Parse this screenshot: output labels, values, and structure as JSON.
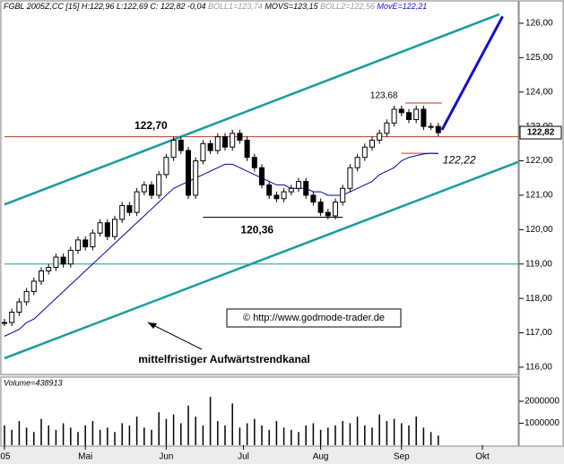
{
  "chart_data": {
    "type": "candlestick",
    "header": [
      "FGBL 2005Z,CC [15] H:122,96 L:122,69 C: 122,82 -0,04",
      "BOLL1=123,74",
      "MOVS=123,15",
      "BOLL2=122,56",
      "MovE=122,21"
    ],
    "x": [
      0,
      2,
      4,
      6,
      8,
      10,
      12,
      14,
      16,
      18,
      20,
      22,
      24,
      26,
      28,
      30,
      32,
      34,
      36,
      38,
      40,
      42,
      44,
      46,
      48,
      50,
      52,
      54,
      56,
      58,
      60,
      62,
      64,
      66,
      68,
      70,
      72,
      74,
      76,
      78,
      80,
      82,
      84,
      86,
      88,
      90,
      92,
      94,
      96,
      98,
      100,
      102,
      104,
      106,
      108,
      110,
      112,
      114,
      116,
      118
    ],
    "series": [
      {
        "color": "#000000",
        "values": [
          117.3,
          117.6,
          117.9,
          118.2,
          118.5,
          118.8,
          118.9,
          119.2,
          119.0,
          119.4,
          119.7,
          119.5,
          119.9,
          120.2,
          119.8,
          120.3,
          120.7,
          120.5,
          121.1,
          121.3,
          121.0,
          121.6,
          122.1,
          122.6,
          122.3,
          121.0,
          122.0,
          122.5,
          122.3,
          122.7,
          122.4,
          122.8,
          122.6,
          122.1,
          121.8,
          121.3,
          121.0,
          120.9,
          121.1,
          121.2,
          121.4,
          121.0,
          120.8,
          120.5,
          120.4,
          120.8,
          121.2,
          121.8,
          122.1,
          122.4,
          122.6,
          122.8,
          123.1,
          123.5,
          123.4,
          123.2,
          123.5,
          123.0,
          123.0,
          122.82
        ]
      },
      {
        "color": "#0000aa",
        "values": [
          116.9,
          117.0,
          117.1,
          117.3,
          117.4,
          117.6,
          117.8,
          118.0,
          118.2,
          118.4,
          118.6,
          118.8,
          119.0,
          119.2,
          119.4,
          119.6,
          119.8,
          120.0,
          120.2,
          120.4,
          120.6,
          120.8,
          121.0,
          121.2,
          121.3,
          121.4,
          121.5,
          121.6,
          121.7,
          121.8,
          121.9,
          121.9,
          121.8,
          121.7,
          121.6,
          121.5,
          121.4,
          121.3,
          121.3,
          121.2,
          121.2,
          121.2,
          121.1,
          121.1,
          121.0,
          121.0,
          121.0,
          121.1,
          121.2,
          121.3,
          121.4,
          121.6,
          121.7,
          121.8,
          122.0,
          122.1,
          122.15,
          122.2,
          122.22,
          122.21
        ]
      }
    ],
    "volume": {
      "label": "Volume=438913",
      "color": "#000000",
      "values": [
        900000,
        700000,
        1100000,
        800000,
        600000,
        1200000,
        900000,
        700000,
        1000000,
        800000,
        600000,
        900000,
        1100000,
        700000,
        800000,
        600000,
        1000000,
        900000,
        1300000,
        800000,
        700000,
        1500000,
        1200000,
        1400000,
        1000000,
        1800000,
        1300000,
        900000,
        2200000,
        1100000,
        900000,
        1900000,
        800000,
        1000000,
        1200000,
        900000,
        700000,
        1100000,
        800000,
        700000,
        600000,
        900000,
        1000000,
        700000,
        800000,
        900000,
        1100000,
        1000000,
        1300000,
        900000,
        800000,
        1400000,
        1100000,
        1200000,
        1000000,
        900000,
        1300000,
        800000,
        600000,
        438913
      ],
      "ylim": [
        0,
        3100000
      ],
      "yticks": [
        1000000,
        2000000
      ]
    },
    "xlim": [
      0,
      140
    ],
    "xticks": [
      {
        "value": 0,
        "label": "'05"
      },
      {
        "value": 22,
        "label": "Mai"
      },
      {
        "value": 44,
        "label": "Jun"
      },
      {
        "value": 65,
        "label": "Jul"
      },
      {
        "value": 86,
        "label": "Aug"
      },
      {
        "value": 108,
        "label": "Sep"
      },
      {
        "value": 130,
        "label": "Okt"
      }
    ],
    "ylim": [
      115.79,
      126.65
    ],
    "yticks": [
      {
        "value": 116,
        "label": "116,00"
      },
      {
        "value": 117,
        "label": "117,00"
      },
      {
        "value": 118,
        "label": "118,00"
      },
      {
        "value": 119,
        "label": "119,00"
      },
      {
        "value": 120,
        "label": "120,00"
      },
      {
        "value": 121,
        "label": "121,00"
      },
      {
        "value": 122,
        "label": "122,00"
      },
      {
        "value": 123,
        "label": "123,00"
      },
      {
        "value": 124,
        "label": "124,00"
      },
      {
        "value": 125,
        "label": "125,00"
      },
      {
        "value": 126,
        "label": "126,00"
      }
    ],
    "last_price": {
      "value": 122.82,
      "label": "122,82"
    },
    "trendlines": [
      {
        "color": "#199c9c",
        "x": [
          0,
          134.6
        ],
        "y": [
          120.73,
          126.26
        ]
      },
      {
        "color": "#199c9c",
        "x": [
          0,
          139.8
        ],
        "y": [
          116.26,
          121.97
        ]
      },
      {
        "color": "#1010cc",
        "x": [
          119,
          135.5
        ],
        "y": [
          122.9,
          126.2
        ]
      }
    ],
    "levels": [
      {
        "value": 122.7,
        "label": "122,70",
        "color": "#c0392b",
        "x": [
          0,
          140
        ]
      },
      {
        "value": 119,
        "color": "#199c9c",
        "x": [
          0,
          140
        ]
      },
      {
        "value": 120.36,
        "label": "120,36",
        "color": "#000000",
        "x": [
          54,
          92
        ]
      },
      {
        "value": 123.68,
        "label": "123,68",
        "color": "#c0392b",
        "x": [
          109,
          119
        ]
      },
      {
        "value": 122.22,
        "label": "122,22",
        "color": "#c0392b",
        "x": [
          108,
          118
        ]
      }
    ],
    "watermark": "© http://www.godmode-trader.de",
    "annotation": "mittelfristiger Aufwärtstrendkanal"
  }
}
